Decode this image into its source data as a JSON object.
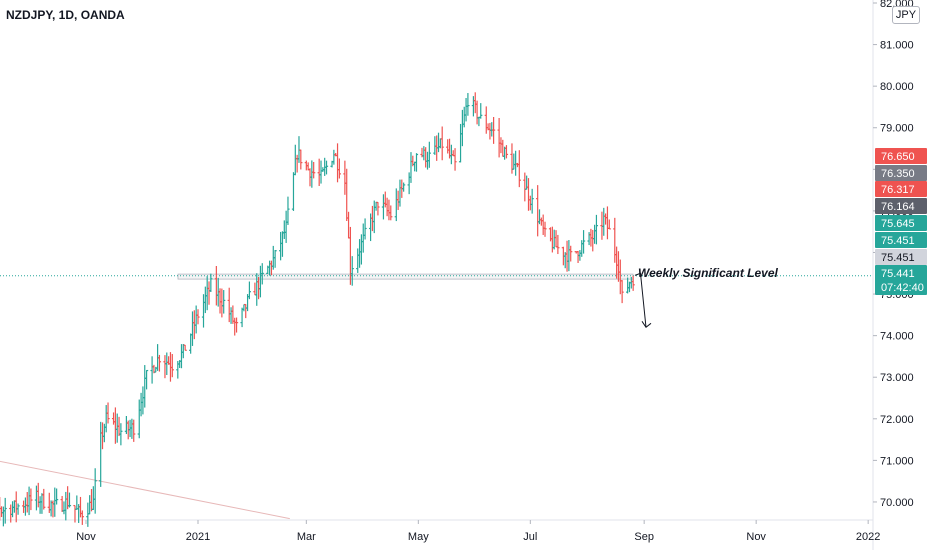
{
  "header": {
    "symbol_title": "NZDJPY, 1D, OANDA",
    "currency": "JPY"
  },
  "annotation": {
    "text": "Weekly Significant Level"
  },
  "colors": {
    "up": "#26a69a",
    "down": "#ef5350",
    "background": "#ffffff",
    "grid": "#f0f3fa",
    "text": "#131722"
  },
  "chart_data": {
    "type": "ohlc-bar",
    "symbol": "NZDJPY",
    "timeframe": "1D",
    "x_ticks": [
      "Nov",
      "2021",
      "Mar",
      "May",
      "Jul",
      "Sep",
      "Nov",
      "2022"
    ],
    "y_ticks": [
      "70.000",
      "71.000",
      "72.000",
      "73.000",
      "74.000",
      "75.000",
      "76.000",
      "77.000",
      "78.000",
      "79.000",
      "80.000",
      "81.000",
      "82.000"
    ],
    "ylim": [
      69.5,
      82.2
    ],
    "price_labels": [
      {
        "value": "76.650",
        "color": "#ef5350"
      },
      {
        "value": "76.350",
        "color": "#787b86"
      },
      {
        "value": "76.317",
        "color": "#ef5350"
      },
      {
        "value": "76.164",
        "color": "#5d606b"
      },
      {
        "value": "75.645",
        "color": "#26a69a"
      },
      {
        "value": "75.451",
        "color": "#26a69a"
      },
      {
        "value": "75.451",
        "color": "#d1d4dc"
      },
      {
        "value": "75.441",
        "color": "#26a69a"
      }
    ],
    "countdown": "07:42:40",
    "significant_level": {
      "low": 75.36,
      "high": 75.48,
      "label": "Weekly Significant Level"
    },
    "current_price": 75.441,
    "trendline": {
      "from": [
        "Sep 1 2020",
        71.1
      ],
      "to": [
        "Feb 20 2021",
        69.6
      ]
    },
    "projection": {
      "from": [
        "Aug 27 2021",
        75.45
      ],
      "peak": [
        "Aug 30 2021",
        75.5
      ],
      "to": [
        "Sep 2 2021",
        74.2
      ]
    },
    "anchors": [
      {
        "date": "Sep 1 2020",
        "value": 71.0
      },
      {
        "date": "Sep 8 2020",
        "value": 70.5
      },
      {
        "date": "Sep 16 2020",
        "value": 69.8
      },
      {
        "date": "Sep 25 2020",
        "value": 69.9
      },
      {
        "date": "Oct 5 2020",
        "value": 70.1
      },
      {
        "date": "Oct 15 2020",
        "value": 69.9
      },
      {
        "date": "Oct 22 2020",
        "value": 70.0
      },
      {
        "date": "Oct 29 2020",
        "value": 69.7
      },
      {
        "date": "Nov 5 2020",
        "value": 70.0
      },
      {
        "date": "Nov 9 2020",
        "value": 71.5
      },
      {
        "date": "Nov 12 2020",
        "value": 72.0
      },
      {
        "date": "Nov 20 2020",
        "value": 71.7
      },
      {
        "date": "Nov 27 2020",
        "value": 71.8
      },
      {
        "date": "Dec 4 2020",
        "value": 73.0
      },
      {
        "date": "Dec 11 2020",
        "value": 73.5
      },
      {
        "date": "Dec 18 2020",
        "value": 73.3
      },
      {
        "date": "Dec 24 2020",
        "value": 73.6
      },
      {
        "date": "Jan 1 2021",
        "value": 74.5
      },
      {
        "date": "Jan 8 2021",
        "value": 75.2
      },
      {
        "date": "Jan 15 2021",
        "value": 74.8
      },
      {
        "date": "Jan 22 2021",
        "value": 74.2
      },
      {
        "date": "Jan 29 2021",
        "value": 74.9
      },
      {
        "date": "Feb 5 2021",
        "value": 75.4
      },
      {
        "date": "Feb 12 2021",
        "value": 75.9
      },
      {
        "date": "Feb 18 2021",
        "value": 76.6
      },
      {
        "date": "Feb 24 2021",
        "value": 78.4
      },
      {
        "date": "Mar 2 2021",
        "value": 78.0
      },
      {
        "date": "Mar 9 2021",
        "value": 77.8
      },
      {
        "date": "Mar 16 2021",
        "value": 78.4
      },
      {
        "date": "Mar 22 2021",
        "value": 77.7
      },
      {
        "date": "Mar 25 2021",
        "value": 75.6
      },
      {
        "date": "Apr 1 2021",
        "value": 76.3
      },
      {
        "date": "Apr 9 2021",
        "value": 77.2
      },
      {
        "date": "Apr 16 2021",
        "value": 76.9
      },
      {
        "date": "Apr 23 2021",
        "value": 77.6
      },
      {
        "date": "Apr 30 2021",
        "value": 78.4
      },
      {
        "date": "May 7 2021",
        "value": 78.3
      },
      {
        "date": "May 14 2021",
        "value": 78.6
      },
      {
        "date": "May 21 2021",
        "value": 78.1
      },
      {
        "date": "May 28 2021",
        "value": 79.7
      },
      {
        "date": "Jun 4 2021",
        "value": 79.2
      },
      {
        "date": "Jun 11 2021",
        "value": 78.9
      },
      {
        "date": "Jun 18 2021",
        "value": 78.3
      },
      {
        "date": "Jun 25 2021",
        "value": 77.9
      },
      {
        "date": "Jul 2 2021",
        "value": 77.2
      },
      {
        "date": "Jul 9 2021",
        "value": 76.4
      },
      {
        "date": "Jul 16 2021",
        "value": 76.1
      },
      {
        "date": "Jul 23 2021",
        "value": 75.9
      },
      {
        "date": "Jul 30 2021",
        "value": 76.2
      },
      {
        "date": "Aug 5 2021",
        "value": 76.4
      },
      {
        "date": "Aug 10 2021",
        "value": 76.8
      },
      {
        "date": "Aug 13 2021",
        "value": 76.5
      },
      {
        "date": "Aug 18 2021",
        "value": 75.7
      },
      {
        "date": "Aug 20 2021",
        "value": 74.9
      },
      {
        "date": "Aug 24 2021",
        "value": 75.3
      },
      {
        "date": "Aug 27 2021",
        "value": 75.44
      }
    ]
  }
}
